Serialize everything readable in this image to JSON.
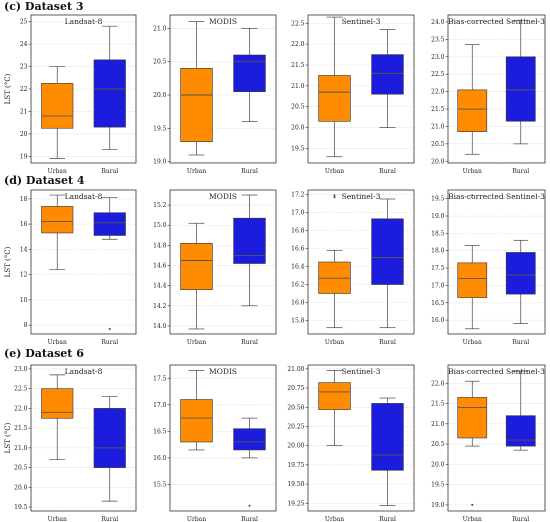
{
  "figure": {
    "sections": [
      {
        "label": "(c) Dataset 3"
      },
      {
        "label": "(d) Dataset 4"
      },
      {
        "label": "(e) Dataset 6"
      }
    ],
    "colors": {
      "urban": "#ff8c00",
      "rural": "#1c1cdc",
      "grid": "#d9d9d9"
    }
  },
  "chart_data": [
    {
      "type": "box",
      "section": 0,
      "title": "Landsat-8",
      "ylabel": "LST (°C)",
      "ylim": [
        18.7,
        25.3
      ],
      "yticks": [
        19,
        20,
        21,
        22,
        23,
        24,
        25
      ],
      "categories": [
        "Urban",
        "Rural"
      ],
      "boxes": [
        {
          "min": 18.9,
          "q1": 20.25,
          "median": 20.8,
          "q3": 22.25,
          "max": 23.0,
          "outliers": []
        },
        {
          "min": 19.3,
          "q1": 20.3,
          "median": 22.0,
          "q3": 23.3,
          "max": 24.8,
          "outliers": []
        }
      ]
    },
    {
      "type": "box",
      "section": 0,
      "title": "MODIS",
      "ylabel": "",
      "ylim": [
        18.98,
        21.2
      ],
      "yticks": [
        19.0,
        19.5,
        20.0,
        20.5,
        21.0
      ],
      "categories": [
        "Urban",
        "Rural"
      ],
      "boxes": [
        {
          "min": 19.1,
          "q1": 19.3,
          "median": 20.0,
          "q3": 20.4,
          "max": 21.1,
          "outliers": []
        },
        {
          "min": 19.6,
          "q1": 20.05,
          "median": 20.5,
          "q3": 20.6,
          "max": 21.0,
          "outliers": []
        }
      ]
    },
    {
      "type": "box",
      "section": 0,
      "title": "Sentinel-3",
      "ylabel": "",
      "ylim": [
        19.15,
        22.7
      ],
      "yticks": [
        19.5,
        20.0,
        20.5,
        21.0,
        21.5,
        22.0,
        22.5
      ],
      "categories": [
        "Urban",
        "Rural"
      ],
      "boxes": [
        {
          "min": 19.3,
          "q1": 20.15,
          "median": 20.85,
          "q3": 21.25,
          "max": 22.65,
          "outliers": []
        },
        {
          "min": 20.0,
          "q1": 20.8,
          "median": 21.3,
          "q3": 21.75,
          "max": 22.35,
          "outliers": []
        }
      ]
    },
    {
      "type": "box",
      "section": 0,
      "title": "Bias-corrected Sentinel-3",
      "ylabel": "",
      "ylim": [
        19.95,
        24.2
      ],
      "yticks": [
        20.0,
        20.5,
        21.0,
        21.5,
        22.0,
        22.5,
        23.0,
        23.5,
        24.0
      ],
      "categories": [
        "Urban",
        "Rural"
      ],
      "boxes": [
        {
          "min": 20.2,
          "q1": 20.85,
          "median": 21.5,
          "q3": 22.05,
          "max": 23.35,
          "outliers": []
        },
        {
          "min": 20.5,
          "q1": 21.15,
          "median": 22.05,
          "q3": 23.0,
          "max": 24.05,
          "outliers": []
        }
      ]
    },
    {
      "type": "box",
      "section": 1,
      "title": "Landsat-8",
      "ylabel": "LST (°C)",
      "ylim": [
        7.3,
        18.7
      ],
      "yticks": [
        8,
        10,
        12,
        14,
        16,
        18
      ],
      "categories": [
        "Urban",
        "Rural"
      ],
      "boxes": [
        {
          "min": 12.4,
          "q1": 15.3,
          "median": 16.2,
          "q3": 17.4,
          "max": 18.3,
          "outliers": []
        },
        {
          "min": 14.8,
          "q1": 15.1,
          "median": 16.1,
          "q3": 16.9,
          "max": 18.1,
          "outliers": [
            7.7
          ]
        }
      ]
    },
    {
      "type": "box",
      "section": 1,
      "title": "MODIS",
      "ylabel": "",
      "ylim": [
        13.92,
        15.35
      ],
      "yticks": [
        14.0,
        14.2,
        14.4,
        14.6,
        14.8,
        15.0,
        15.2
      ],
      "categories": [
        "Urban",
        "Rural"
      ],
      "boxes": [
        {
          "min": 13.97,
          "q1": 14.36,
          "median": 14.65,
          "q3": 14.82,
          "max": 15.02,
          "outliers": []
        },
        {
          "min": 14.2,
          "q1": 14.62,
          "median": 14.7,
          "q3": 15.07,
          "max": 15.3,
          "outliers": []
        }
      ]
    },
    {
      "type": "box",
      "section": 1,
      "title": "Sentinel-3",
      "ylabel": "",
      "ylim": [
        15.65,
        17.25
      ],
      "yticks": [
        15.8,
        16.0,
        16.2,
        16.4,
        16.6,
        16.8,
        17.0,
        17.2
      ],
      "categories": [
        "Urban",
        "Rural"
      ],
      "boxes": [
        {
          "min": 15.72,
          "q1": 16.1,
          "median": 16.27,
          "q3": 16.45,
          "max": 16.58,
          "outliers": [
            17.17,
            17.19
          ]
        },
        {
          "min": 15.72,
          "q1": 16.2,
          "median": 16.5,
          "q3": 16.93,
          "max": 17.15,
          "outliers": []
        }
      ]
    },
    {
      "type": "box",
      "section": 1,
      "title": "Bias-corrected Sentinel-3",
      "ylabel": "",
      "ylim": [
        15.6,
        19.75
      ],
      "yticks": [
        16.0,
        16.5,
        17.0,
        17.5,
        18.0,
        18.5,
        19.0,
        19.5
      ],
      "categories": [
        "Urban",
        "Rural"
      ],
      "boxes": [
        {
          "min": 15.75,
          "q1": 16.65,
          "median": 17.2,
          "q3": 17.65,
          "max": 18.15,
          "outliers": [
            19.6
          ]
        },
        {
          "min": 15.9,
          "q1": 16.75,
          "median": 17.3,
          "q3": 17.95,
          "max": 18.3,
          "outliers": []
        }
      ]
    },
    {
      "type": "box",
      "section": 2,
      "title": "Landsat-8",
      "ylabel": "LST (°C)",
      "ylim": [
        19.4,
        23.1
      ],
      "yticks": [
        19.5,
        20.0,
        20.5,
        21.0,
        21.5,
        22.0,
        22.5,
        23.0
      ],
      "categories": [
        "Urban",
        "Rural"
      ],
      "boxes": [
        {
          "min": 20.7,
          "q1": 21.75,
          "median": 21.9,
          "q3": 22.5,
          "max": 22.85,
          "outliers": []
        },
        {
          "min": 19.65,
          "q1": 20.5,
          "median": 21.0,
          "q3": 22.0,
          "max": 22.3,
          "outliers": []
        }
      ]
    },
    {
      "type": "box",
      "section": 2,
      "title": "MODIS",
      "ylabel": "",
      "ylim": [
        15.0,
        17.75
      ],
      "yticks": [
        15.5,
        16.0,
        16.5,
        17.0,
        17.5
      ],
      "categories": [
        "Urban",
        "Rural"
      ],
      "boxes": [
        {
          "min": 16.15,
          "q1": 16.3,
          "median": 16.75,
          "q3": 17.1,
          "max": 17.65,
          "outliers": []
        },
        {
          "min": 16.0,
          "q1": 16.15,
          "median": 16.3,
          "q3": 16.55,
          "max": 16.75,
          "outliers": [
            15.1
          ]
        }
      ]
    },
    {
      "type": "box",
      "section": 2,
      "title": "Sentinel-3",
      "ylabel": "",
      "ylim": [
        19.15,
        21.05
      ],
      "yticks": [
        19.25,
        19.5,
        19.75,
        20.0,
        20.25,
        20.5,
        20.75,
        21.0
      ],
      "categories": [
        "Urban",
        "Rural"
      ],
      "boxes": [
        {
          "min": 20.0,
          "q1": 20.47,
          "median": 20.7,
          "q3": 20.82,
          "max": 20.98,
          "outliers": []
        },
        {
          "min": 19.22,
          "q1": 19.68,
          "median": 19.88,
          "q3": 20.55,
          "max": 20.62,
          "outliers": []
        }
      ]
    },
    {
      "type": "box",
      "section": 2,
      "title": "Bias-corrected Sentinel-3",
      "ylabel": "",
      "ylim": [
        18.85,
        22.45
      ],
      "yticks": [
        19.0,
        19.5,
        20.0,
        20.5,
        21.0,
        21.5,
        22.0
      ],
      "categories": [
        "Urban",
        "Rural"
      ],
      "boxes": [
        {
          "min": 20.45,
          "q1": 20.65,
          "median": 21.4,
          "q3": 21.65,
          "max": 22.05,
          "outliers": [
            19.0
          ]
        },
        {
          "min": 20.35,
          "q1": 20.45,
          "median": 20.6,
          "q3": 21.2,
          "max": 22.3,
          "outliers": []
        }
      ]
    }
  ]
}
